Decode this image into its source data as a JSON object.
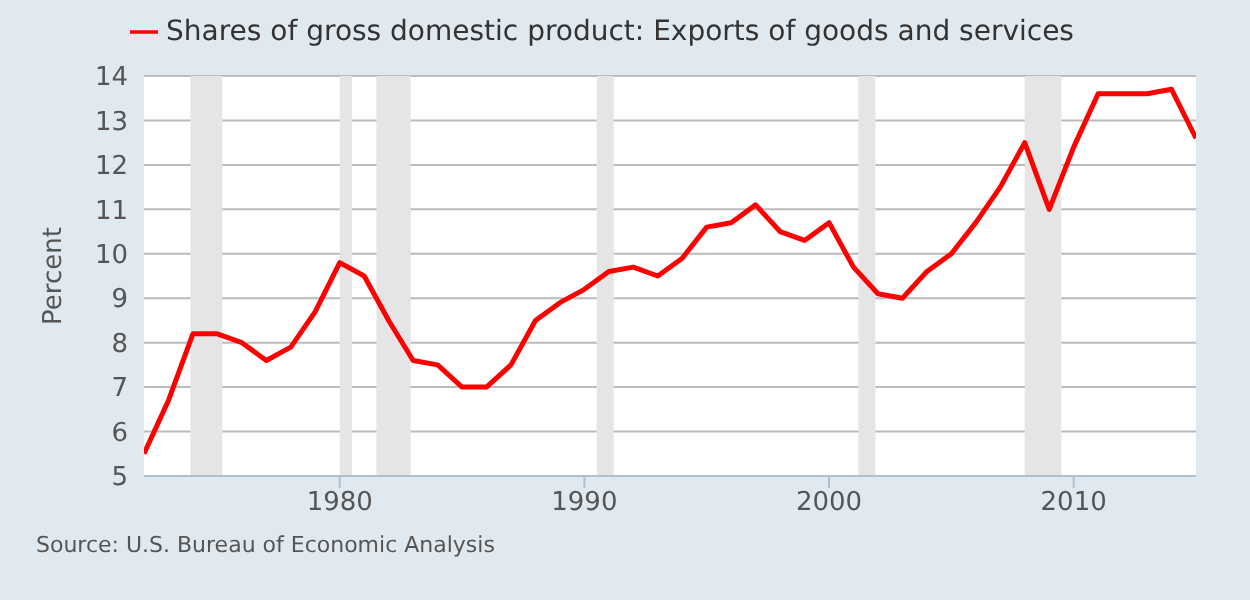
{
  "chart_data": {
    "type": "line",
    "x": [
      1972,
      1973,
      1974,
      1975,
      1976,
      1977,
      1978,
      1979,
      1980,
      1981,
      1982,
      1983,
      1984,
      1985,
      1986,
      1987,
      1988,
      1989,
      1990,
      1991,
      1992,
      1993,
      1994,
      1995,
      1996,
      1997,
      1998,
      1999,
      2000,
      2001,
      2002,
      2003,
      2004,
      2005,
      2006,
      2007,
      2008,
      2009,
      2010,
      2011,
      2012,
      2013,
      2014,
      2015
    ],
    "series": [
      {
        "name": "Shares of gross domestic product: Exports of goods and services",
        "color": "#ff0000",
        "values": [
          5.5,
          6.7,
          8.2,
          8.2,
          8.0,
          7.6,
          7.9,
          8.7,
          9.8,
          9.5,
          8.5,
          7.6,
          7.5,
          7.0,
          7.0,
          7.5,
          8.5,
          8.9,
          9.2,
          9.6,
          9.7,
          9.5,
          9.9,
          10.6,
          10.7,
          11.1,
          10.5,
          10.3,
          10.7,
          9.7,
          9.1,
          9.0,
          9.6,
          10.0,
          10.7,
          11.5,
          12.5,
          11.0,
          12.4,
          13.6,
          13.6,
          13.6,
          13.7,
          12.6
        ]
      }
    ],
    "ylabel": "Percent",
    "xlim": [
      1972,
      2015
    ],
    "xticks": [
      1980,
      1990,
      2000,
      2010
    ],
    "ylim": [
      5,
      14
    ],
    "yticks": [
      5,
      6,
      7,
      8,
      9,
      10,
      11,
      12,
      13,
      14
    ],
    "grid": "y",
    "legend": "top",
    "marker": "none",
    "line_style": "solid",
    "bands": [
      {
        "axis": "x",
        "from": 1973.9,
        "to": 1975.2,
        "color": "#e5e5e5"
      },
      {
        "axis": "x",
        "from": 1980.0,
        "to": 1980.5,
        "color": "#e5e5e5"
      },
      {
        "axis": "x",
        "from": 1981.5,
        "to": 1982.9,
        "color": "#e5e5e5"
      },
      {
        "axis": "x",
        "from": 1990.5,
        "to": 1991.2,
        "color": "#e5e5e5"
      },
      {
        "axis": "x",
        "from": 2001.2,
        "to": 2001.9,
        "color": "#e5e5e5"
      },
      {
        "axis": "x",
        "from": 2008.0,
        "to": 2009.5,
        "color": "#e5e5e5"
      }
    ],
    "annotations": [
      "Source: U.S. Bureau of Economic Analysis"
    ]
  }
}
